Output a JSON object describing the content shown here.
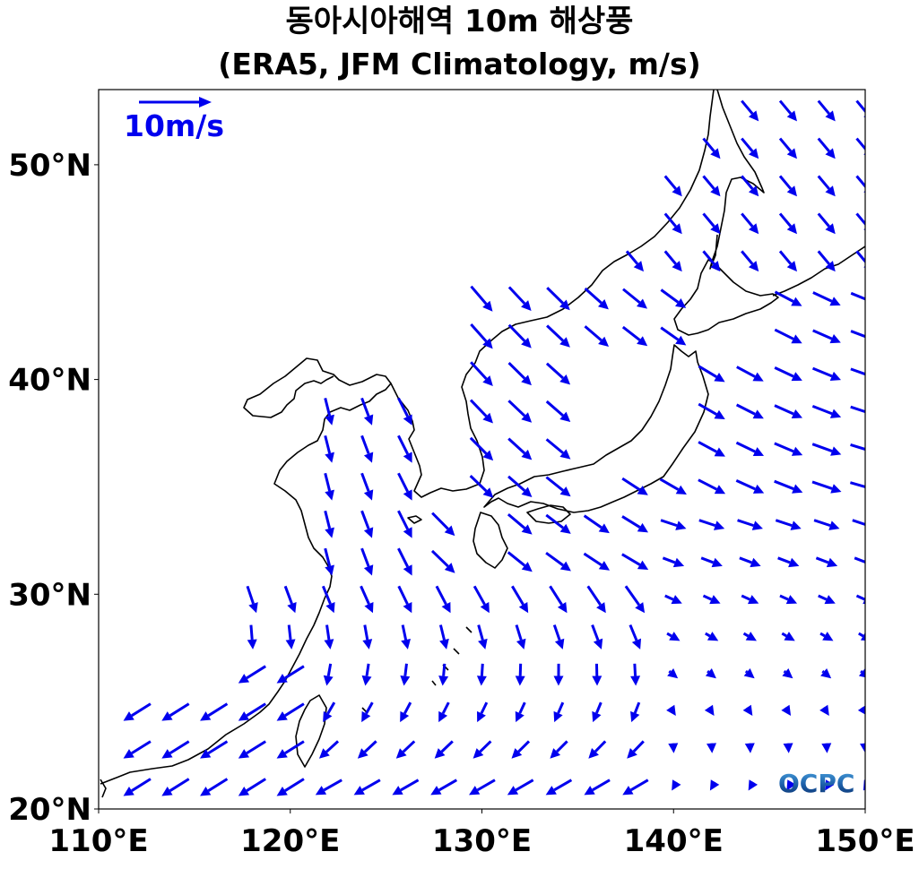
{
  "title": {
    "line1": "동아시아해역 10m 해상풍",
    "line2": "(ERA5, JFM Climatology, m/s)"
  },
  "map": {
    "lon_range": [
      110,
      150
    ],
    "lat_range": [
      20,
      53.5
    ],
    "lon_ticks": [
      {
        "value": 110,
        "label": "110°E"
      },
      {
        "value": 120,
        "label": "120°E"
      },
      {
        "value": 130,
        "label": "130°E"
      },
      {
        "value": 140,
        "label": "140°E"
      },
      {
        "value": 150,
        "label": "150°E"
      }
    ],
    "lat_ticks": [
      {
        "value": 20,
        "label": "20°N"
      },
      {
        "value": 30,
        "label": "30°N"
      },
      {
        "value": 40,
        "label": "40°N"
      },
      {
        "value": 50,
        "label": "50°N"
      }
    ],
    "arrow_color": "#0000ee",
    "coast_color": "#000000"
  },
  "reference_vector": {
    "label": "10m/s",
    "speed": 10
  },
  "logo": {
    "text": "OCPC"
  }
}
